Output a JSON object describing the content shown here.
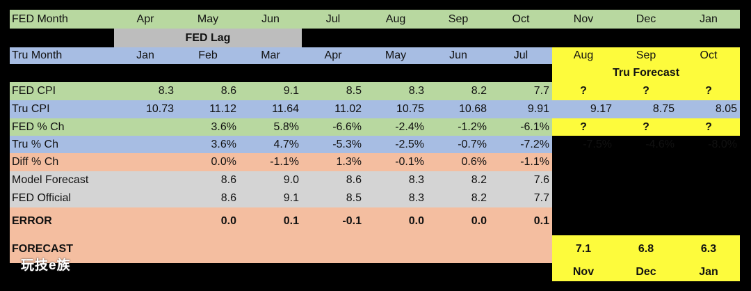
{
  "row_fed_month": {
    "label": "FED Month",
    "values": [
      "Apr",
      "May",
      "Jun",
      "Jul",
      "Aug",
      "Sep",
      "Oct",
      "Nov",
      "Dec",
      "Jan"
    ]
  },
  "fed_lag_label": "FED Lag",
  "row_tru_month": {
    "label": "Tru Month",
    "values": [
      "Jan",
      "Feb",
      "Mar",
      "Apr",
      "May",
      "Jun",
      "Jul",
      "Aug",
      "Sep",
      "Oct"
    ]
  },
  "tru_forecast_label": "Tru Forecast",
  "row_fed_cpi": {
    "label": "FED CPI",
    "values": [
      "8.3",
      "8.6",
      "9.1",
      "8.5",
      "8.3",
      "8.2",
      "7.7",
      "?",
      "?",
      "?"
    ]
  },
  "row_tru_cpi": {
    "label": "Tru CPI",
    "values": [
      "10.73",
      "11.12",
      "11.64",
      "11.02",
      "10.75",
      "10.68",
      "9.91",
      "9.17",
      "8.75",
      "8.05"
    ]
  },
  "row_fed_pct": {
    "label": "FED % Ch",
    "values": [
      "",
      "3.6%",
      "5.8%",
      "-6.6%",
      "-2.4%",
      "-1.2%",
      "-6.1%",
      "?",
      "?",
      "?"
    ]
  },
  "row_tru_pct": {
    "label": "Tru % Ch",
    "values": [
      "",
      "3.6%",
      "4.7%",
      "-5.3%",
      "-2.5%",
      "-0.7%",
      "-7.2%",
      "-7.5%",
      "-4.6%",
      "-8.0%"
    ]
  },
  "row_diff_pct": {
    "label": "Diff % Ch",
    "values": [
      "",
      "0.0%",
      "-1.1%",
      "1.3%",
      "-0.1%",
      "0.6%",
      "-1.1%",
      "",
      "",
      ""
    ]
  },
  "row_model_forecast": {
    "label": "Model Forecast",
    "values": [
      "",
      "8.6",
      "9.0",
      "8.6",
      "8.3",
      "8.2",
      "7.6",
      "",
      "",
      ""
    ]
  },
  "row_fed_official": {
    "label": "FED Official",
    "values": [
      "",
      "8.6",
      "9.1",
      "8.5",
      "8.3",
      "8.2",
      "7.7",
      "",
      "",
      ""
    ]
  },
  "row_error": {
    "label": "ERROR",
    "values": [
      "",
      "0.0",
      "0.1",
      "-0.1",
      "0.0",
      "0.0",
      "0.1",
      "",
      "",
      ""
    ]
  },
  "row_forecast": {
    "label": "FORECAST",
    "values": [
      "",
      "",
      "",
      "",
      "",
      "",
      "",
      "7.1",
      "6.8",
      "6.3"
    ]
  },
  "forecast_months": [
    "Nov",
    "Dec",
    "Jan"
  ],
  "watermark": "玩技e族",
  "colors": {
    "green": "#b8d8a0",
    "blue": "#a7bde3",
    "peach": "#f4bea0",
    "gray": "#d4d4d4",
    "lag_gray": "#bdbdbd",
    "yellow": "#fdfb3c",
    "background": "#000000"
  }
}
